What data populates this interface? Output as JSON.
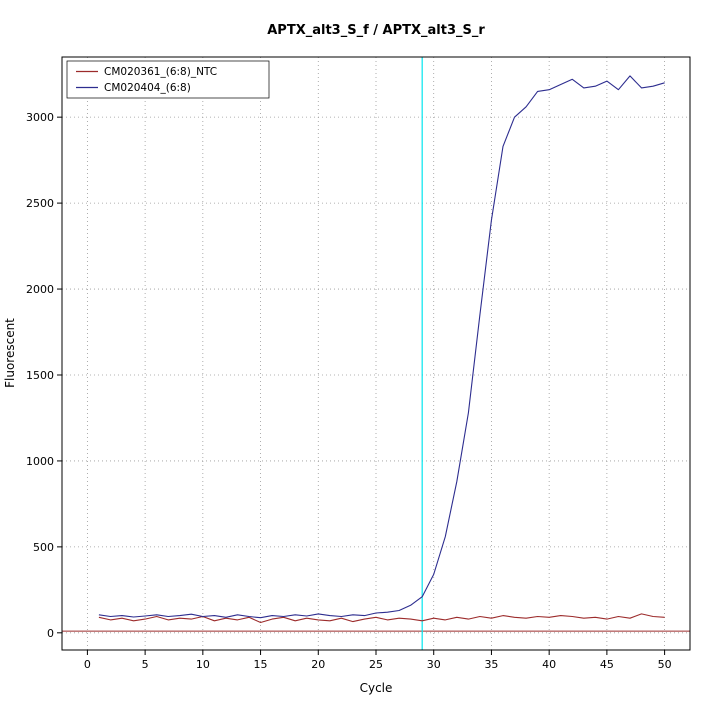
{
  "page": {
    "title": "APTX_alt3_S_f / APTX_alt3_S_r"
  },
  "chart_data": {
    "type": "line",
    "title": "APTX_alt3_S_f / APTX_alt3_S_r",
    "xlabel": "Cycle",
    "ylabel": "Fluorescent",
    "xlim": [
      -2.2,
      52.2
    ],
    "ylim": [
      -100,
      3350
    ],
    "x_ticks": [
      0,
      5,
      10,
      15,
      20,
      25,
      30,
      35,
      40,
      45,
      50
    ],
    "y_ticks": [
      0,
      500,
      1000,
      1500,
      2000,
      2500,
      3000
    ],
    "grid": true,
    "grid_color": "#9a9a9a",
    "legend_position": "top-left",
    "threshold_line_y": 10,
    "threshold_cycle_x": 29,
    "threshold_cycle_color": "#00e5ee",
    "x": [
      1,
      2,
      3,
      4,
      5,
      6,
      7,
      8,
      9,
      10,
      11,
      12,
      13,
      14,
      15,
      16,
      17,
      18,
      19,
      20,
      21,
      22,
      23,
      24,
      25,
      26,
      27,
      28,
      29,
      30,
      31,
      32,
      33,
      34,
      35,
      36,
      37,
      38,
      39,
      40,
      41,
      42,
      43,
      44,
      45,
      46,
      47,
      48,
      49,
      50
    ],
    "series": [
      {
        "name": "CM020361_(6:8)_NTC",
        "color": "#9c2b2b",
        "values": [
          90,
          75,
          85,
          70,
          80,
          95,
          75,
          85,
          80,
          95,
          70,
          85,
          75,
          90,
          60,
          80,
          90,
          70,
          85,
          75,
          70,
          85,
          65,
          80,
          90,
          75,
          85,
          80,
          70,
          85,
          75,
          90,
          80,
          95,
          85,
          100,
          90,
          85,
          95,
          90,
          100,
          95,
          85,
          90,
          80,
          95,
          85,
          110,
          95,
          90
        ]
      },
      {
        "name": "CM020404_(6:8)",
        "color": "#2d2d8f",
        "values": [
          105,
          95,
          100,
          92,
          98,
          105,
          95,
          100,
          108,
          95,
          100,
          90,
          105,
          95,
          88,
          100,
          95,
          105,
          98,
          110,
          100,
          95,
          105,
          100,
          115,
          120,
          130,
          160,
          210,
          340,
          560,
          880,
          1280,
          1850,
          2400,
          2830,
          3000,
          3060,
          3150,
          3160,
          3190,
          3220,
          3170,
          3180,
          3210,
          3160,
          3240,
          3170,
          3180,
          3200
        ]
      }
    ]
  }
}
